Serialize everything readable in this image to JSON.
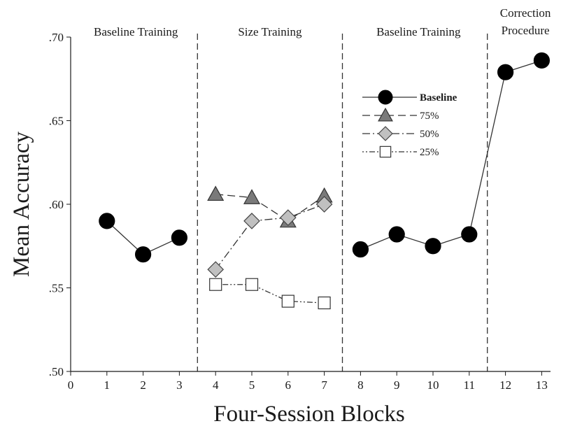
{
  "chart_data": {
    "type": "line",
    "xlabel": "Four-Session Blocks",
    "ylabel": "Mean Accuracy",
    "xlim": [
      0,
      13.5
    ],
    "ylim": [
      0.5,
      0.7
    ],
    "x_ticks": [
      "0",
      "1",
      "2",
      "3",
      "4",
      "5",
      "6",
      "7",
      "8",
      "9",
      "10",
      "11",
      "12",
      "13"
    ],
    "y_ticks": [
      {
        "value": 0.5,
        "label": ".50"
      },
      {
        "value": 0.55,
        "label": ".55"
      },
      {
        "value": 0.6,
        "label": ".60"
      },
      {
        "value": 0.65,
        "label": ".65"
      },
      {
        "value": 0.7,
        "label": ".70"
      }
    ],
    "phase_dividers": [
      3.5,
      7.5,
      11.5
    ],
    "phases": [
      {
        "lines": [
          "Baseline Training"
        ],
        "center": 1.8
      },
      {
        "lines": [
          "Size Training"
        ],
        "center": 5.5
      },
      {
        "lines": [
          "Baseline Training"
        ],
        "center": 9.6
      },
      {
        "lines": [
          "Correction",
          "Procedure"
        ],
        "center": 12.55
      }
    ],
    "series": [
      {
        "name": "Baseline",
        "marker": "circle",
        "dash": "solid",
        "fill": "#000000",
        "segments": [
          [
            {
              "x": 1,
              "y": 0.59
            },
            {
              "x": 2,
              "y": 0.57
            },
            {
              "x": 3,
              "y": 0.58
            }
          ],
          [
            {
              "x": 8,
              "y": 0.573
            },
            {
              "x": 9,
              "y": 0.582
            },
            {
              "x": 10,
              "y": 0.575
            },
            {
              "x": 11,
              "y": 0.582
            },
            {
              "x": 12,
              "y": 0.679
            },
            {
              "x": 13,
              "y": 0.686
            }
          ]
        ]
      },
      {
        "name": "75%",
        "marker": "triangle",
        "dash": "dashed",
        "fill": "#7a7a7a",
        "segments": [
          [
            {
              "x": 4,
              "y": 0.606
            },
            {
              "x": 5,
              "y": 0.604
            },
            {
              "x": 6,
              "y": 0.59
            },
            {
              "x": 7,
              "y": 0.605
            }
          ]
        ]
      },
      {
        "name": "50%",
        "marker": "diamond",
        "dash": "dashdot",
        "fill": "#c0c0c0",
        "segments": [
          [
            {
              "x": 4,
              "y": 0.561
            },
            {
              "x": 5,
              "y": 0.59
            },
            {
              "x": 6,
              "y": 0.592
            },
            {
              "x": 7,
              "y": 0.6
            }
          ]
        ]
      },
      {
        "name": "25%",
        "marker": "square",
        "dash": "dotdash",
        "fill": "#ffffff",
        "segments": [
          [
            {
              "x": 4,
              "y": 0.552
            },
            {
              "x": 5,
              "y": 0.552
            },
            {
              "x": 6,
              "y": 0.542
            },
            {
              "x": 7,
              "y": 0.541
            }
          ]
        ]
      }
    ],
    "legend": {
      "placement": "top-right"
    }
  }
}
